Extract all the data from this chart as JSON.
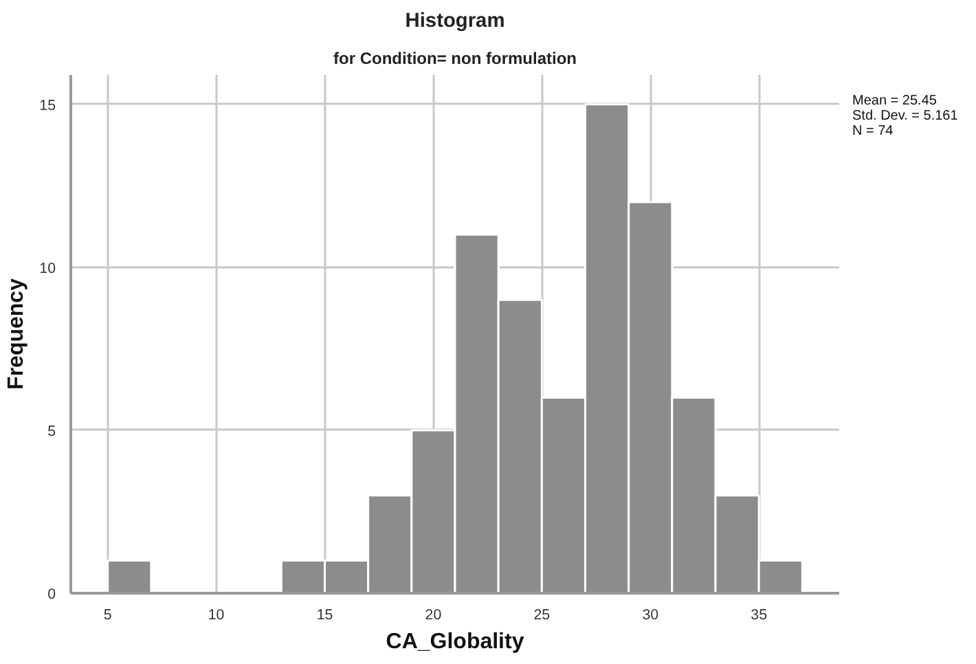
{
  "chart_data": {
    "type": "histogram",
    "title": "Histogram",
    "subtitle": "for Condition= non formulation",
    "xlabel": "CA_Globality",
    "ylabel": "Frequency",
    "bins": [
      5,
      7,
      9,
      11,
      13,
      15,
      17,
      19,
      21,
      23,
      25,
      27,
      29,
      31,
      33,
      35,
      37
    ],
    "values": [
      1,
      0,
      0,
      0,
      1,
      1,
      3,
      5,
      11,
      9,
      6,
      15,
      12,
      6,
      3,
      1
    ],
    "color": "#8c8c8c",
    "xlim": [
      3.3,
      38.7
    ],
    "xticks": [
      5,
      10,
      15,
      20,
      25,
      30,
      35
    ],
    "ylim": [
      0,
      15.9
    ],
    "yticks": [
      0,
      5,
      10,
      15
    ],
    "grid": true,
    "annotations": [
      "Mean = 25.45",
      "Std. Dev. = 5.161",
      "N = 74"
    ]
  }
}
